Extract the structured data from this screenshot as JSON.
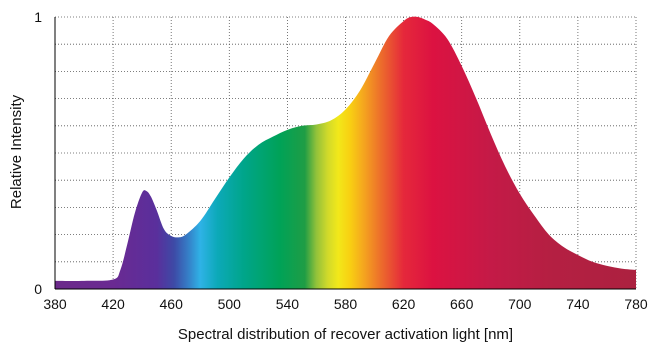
{
  "chart_data": {
    "type": "area",
    "title": "",
    "xlabel": "Spectral distribution of recover activation light [nm]",
    "ylabel": "Relative Intensity",
    "xlim": [
      380,
      780
    ],
    "ylim": [
      0,
      1
    ],
    "x_ticks": [
      380,
      420,
      460,
      500,
      540,
      580,
      620,
      660,
      700,
      740,
      780
    ],
    "x_tick_labels": [
      "380",
      "420",
      "460",
      "500",
      "540",
      "580",
      "620",
      "660",
      "700",
      "740",
      "780"
    ],
    "y_ticks": [
      0,
      1
    ],
    "y_tick_labels": [
      "0",
      "1"
    ],
    "grid": "dotted",
    "legend": "none",
    "fill": "visible-spectrum gradient",
    "series": [
      {
        "x": [
          380,
          400,
          420,
          425,
          430,
          435,
          440,
          443,
          446,
          450,
          455,
          460,
          465,
          470,
          480,
          490,
          500,
          510,
          520,
          530,
          540,
          550,
          560,
          570,
          580,
          590,
          600,
          610,
          620,
          625,
          630,
          635,
          640,
          650,
          660,
          670,
          680,
          690,
          700,
          710,
          720,
          730,
          740,
          750,
          760,
          770,
          780
        ],
        "y": [
          0.03,
          0.03,
          0.035,
          0.07,
          0.17,
          0.28,
          0.355,
          0.36,
          0.34,
          0.29,
          0.22,
          0.195,
          0.19,
          0.2,
          0.25,
          0.33,
          0.41,
          0.48,
          0.53,
          0.56,
          0.585,
          0.6,
          0.605,
          0.62,
          0.66,
          0.73,
          0.83,
          0.93,
          0.985,
          1.0,
          1.0,
          0.99,
          0.975,
          0.92,
          0.82,
          0.7,
          0.57,
          0.45,
          0.35,
          0.27,
          0.2,
          0.155,
          0.125,
          0.1,
          0.085,
          0.075,
          0.07
        ]
      }
    ],
    "colors": {
      "380": "#6b2a8a",
      "420": "#6a2a92",
      "450": "#5a2f9c",
      "462": "#3d4aa6",
      "472": "#3580c8",
      "480": "#2fb2e6",
      "492": "#0ca9b8",
      "510": "#00a58a",
      "535": "#00a257",
      "552": "#1f9d45",
      "560": "#93c23a",
      "568": "#d2da2a",
      "575": "#f2e81a",
      "583": "#f8d012",
      "592": "#f5a81e",
      "605": "#ec6a2c",
      "620": "#e5283b",
      "640": "#dc1241",
      "680": "#c41a47",
      "720": "#b51f42",
      "780": "#ac2140"
    }
  }
}
